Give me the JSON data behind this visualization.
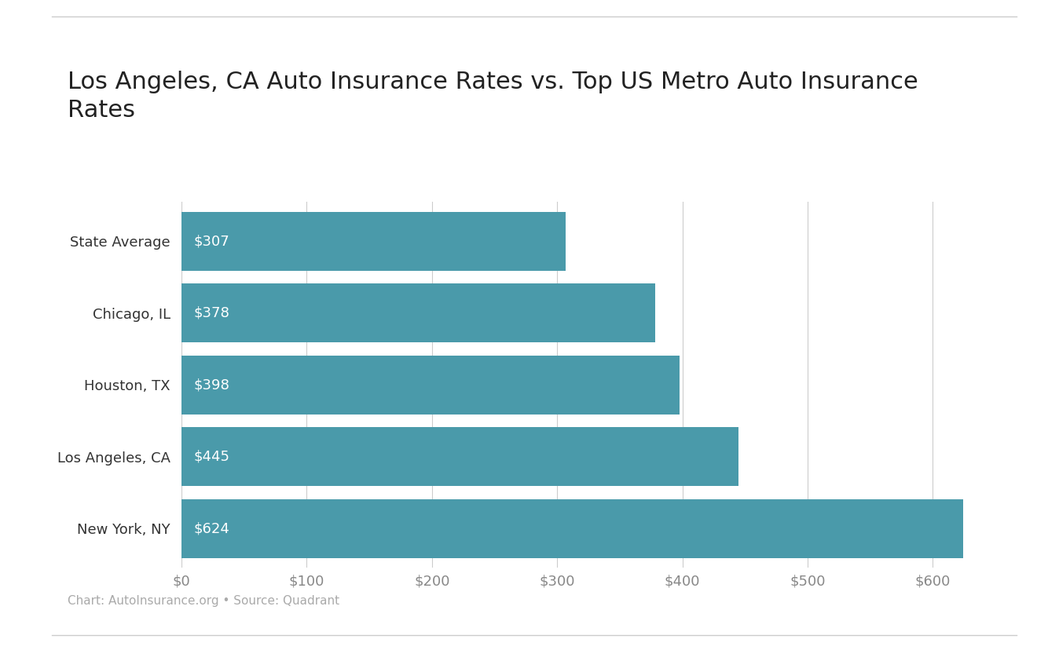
{
  "title": "Los Angeles, CA Auto Insurance Rates vs. Top US Metro Auto Insurance\nRates",
  "categories": [
    "New York, NY",
    "Los Angeles, CA",
    "Houston, TX",
    "Chicago, IL",
    "State Average"
  ],
  "values": [
    624,
    445,
    398,
    378,
    307
  ],
  "bar_color": "#4a9aaa",
  "label_color": "#ffffff",
  "xlim": [
    0,
    650
  ],
  "xticks": [
    0,
    100,
    200,
    300,
    400,
    500,
    600
  ],
  "xtick_labels": [
    "$0",
    "$100",
    "$200",
    "$300",
    "$400",
    "$500",
    "$600"
  ],
  "caption": "Chart: AutoInsurance.org • Source: Quadrant",
  "background_color": "#ffffff",
  "title_fontsize": 22,
  "tick_fontsize": 13,
  "label_fontsize": 13,
  "caption_fontsize": 11,
  "bar_height": 0.82,
  "grid_color": "#cccccc",
  "top_line_color": "#cccccc",
  "bottom_line_color": "#cccccc",
  "ytick_color": "#333333",
  "xtick_color": "#888888"
}
